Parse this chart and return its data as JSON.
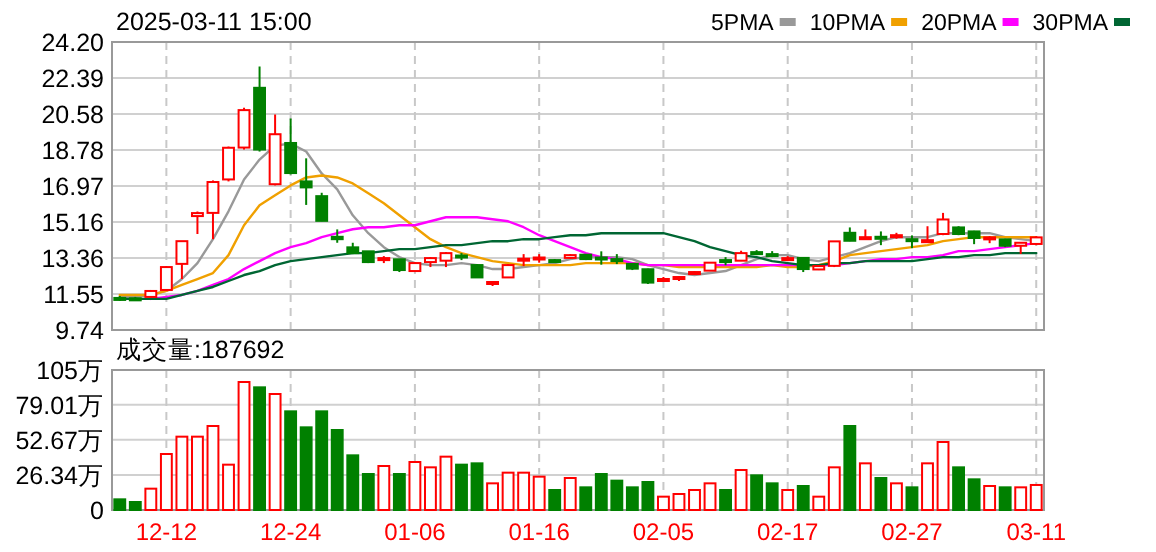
{
  "chart_data": [
    {
      "type": "candlestick",
      "title": "2025-03-11 15:00",
      "legend": "top right",
      "grid": true,
      "tick_labels": "y",
      "categories": [
        null,
        null,
        null,
        null,
        null,
        null,
        null,
        null,
        null,
        null,
        null,
        null,
        null,
        null,
        null,
        null,
        null,
        null,
        null,
        null,
        null,
        null,
        null,
        null,
        null,
        null,
        null,
        null,
        null,
        null,
        null,
        null,
        null,
        null,
        null,
        null,
        null,
        null,
        null,
        null,
        null,
        null,
        null,
        null,
        null,
        null,
        null,
        null,
        null,
        null,
        null,
        null,
        null,
        null,
        null,
        null,
        null,
        null,
        null,
        null
      ],
      "ylim": [
        9.74,
        24.2
      ],
      "yticks": [
        9.74,
        11.55,
        13.36,
        15.16,
        16.97,
        18.78,
        20.58,
        22.39,
        {
          "value": 24.2,
          "label": "24.20"
        }
      ],
      "ohlc": [
        [
          11.35,
          11.45,
          11.2,
          11.3
        ],
        [
          11.33,
          11.4,
          11.22,
          11.28
        ],
        [
          11.4,
          11.75,
          11.38,
          11.7
        ],
        [
          11.75,
          12.95,
          11.72,
          12.9
        ],
        [
          13.06,
          14.2,
          12.3,
          14.2
        ],
        [
          15.46,
          15.69,
          14.56,
          15.61
        ],
        [
          15.62,
          17.25,
          14.3,
          17.17
        ],
        [
          17.3,
          18.95,
          17.2,
          18.89
        ],
        [
          18.9,
          20.9,
          18.8,
          20.78
        ],
        [
          21.9,
          22.97,
          18.7,
          18.8
        ],
        [
          17.06,
          20.56,
          17.0,
          19.57
        ],
        [
          19.13,
          20.36,
          17.55,
          17.62
        ],
        [
          17.2,
          18.36,
          16.02,
          16.9
        ],
        [
          16.46,
          16.63,
          15.2,
          15.22
        ],
        [
          14.42,
          14.79,
          14.12,
          14.3
        ],
        [
          13.89,
          14.12,
          13.55,
          13.6
        ],
        [
          13.69,
          13.7,
          13.1,
          13.15
        ],
        [
          13.25,
          13.45,
          13.1,
          13.35
        ],
        [
          13.29,
          13.3,
          12.65,
          12.75
        ],
        [
          12.7,
          13.15,
          12.65,
          13.1
        ],
        [
          13.15,
          13.4,
          12.9,
          13.35
        ],
        [
          13.22,
          13.65,
          12.9,
          13.6
        ],
        [
          13.48,
          13.6,
          13.25,
          13.42
        ],
        [
          13.0,
          13.05,
          12.35,
          12.38
        ],
        [
          12.05,
          12.2,
          11.95,
          12.15
        ],
        [
          12.38,
          13.05,
          12.35,
          13.0
        ],
        [
          13.27,
          13.55,
          12.95,
          13.32
        ],
        [
          13.33,
          13.55,
          13.12,
          13.38
        ],
        [
          13.25,
          13.3,
          13.15,
          13.2
        ],
        [
          13.36,
          13.55,
          13.33,
          13.5
        ],
        [
          13.52,
          13.55,
          13.25,
          13.3
        ],
        [
          13.38,
          13.69,
          13.02,
          13.34
        ],
        [
          13.3,
          13.55,
          13.05,
          13.25
        ],
        [
          13.06,
          13.1,
          12.75,
          12.82
        ],
        [
          12.79,
          12.82,
          12.05,
          12.12
        ],
        [
          12.25,
          12.4,
          12.15,
          12.3
        ],
        [
          12.3,
          12.45,
          12.2,
          12.4
        ],
        [
          12.55,
          12.7,
          12.5,
          12.65
        ],
        [
          12.72,
          13.15,
          12.7,
          13.12
        ],
        [
          13.25,
          13.4,
          12.99,
          13.2
        ],
        [
          13.22,
          13.72,
          13.2,
          13.6
        ],
        [
          13.65,
          13.75,
          13.5,
          13.6
        ],
        [
          13.55,
          13.7,
          13.4,
          13.5
        ],
        [
          13.3,
          13.45,
          13.2,
          13.35
        ],
        [
          13.36,
          13.4,
          12.65,
          12.8
        ],
        [
          12.78,
          13.0,
          12.75,
          12.95
        ],
        [
          12.96,
          14.19,
          12.9,
          14.19
        ],
        [
          14.62,
          14.89,
          14.2,
          14.22
        ],
        [
          14.38,
          14.79,
          14.35,
          14.4
        ],
        [
          14.42,
          14.69,
          14.0,
          14.38
        ],
        [
          14.46,
          14.62,
          14.32,
          14.5
        ],
        [
          14.3,
          14.49,
          13.85,
          14.28
        ],
        [
          14.2,
          14.95,
          14.2,
          14.25
        ],
        [
          14.56,
          15.62,
          14.5,
          15.29
        ],
        [
          14.89,
          14.95,
          14.5,
          14.56
        ],
        [
          14.69,
          14.72,
          14.05,
          14.36
        ],
        [
          14.33,
          14.45,
          14.1,
          14.39
        ],
        [
          14.29,
          14.32,
          13.9,
          13.97
        ],
        [
          13.97,
          14.15,
          13.56,
          14.12
        ],
        [
          14.06,
          14.45,
          14.0,
          14.39
        ]
      ],
      "colors": [
        "#008000",
        "#008000",
        "#ff0000",
        "#ff0000",
        "#ff0000",
        "#ff0000",
        "#ff0000",
        "#ff0000",
        "#ff0000",
        "#008000",
        "#ff0000",
        "#008000",
        "#008000",
        "#008000",
        "#008000",
        "#008000",
        "#008000",
        "#ff0000",
        "#008000",
        "#ff0000",
        "#ff0000",
        "#ff0000",
        "#008000",
        "#008000",
        "#ff0000",
        "#ff0000",
        "#ff0000",
        "#ff0000",
        "#008000",
        "#ff0000",
        "#008000",
        "#008000",
        "#008000",
        "#008000",
        "#008000",
        "#ff0000",
        "#ff0000",
        "#ff0000",
        "#ff0000",
        "#008000",
        "#ff0000",
        "#008000",
        "#008000",
        "#ff0000",
        "#008000",
        "#ff0000",
        "#ff0000",
        "#008000",
        "#ff0000",
        "#008000",
        "#ff0000",
        "#008000",
        "#ff0000",
        "#ff0000",
        "#008000",
        "#008000",
        "#ff0000",
        "#008000",
        "#ff0000",
        "#ff0000"
      ],
      "series": [
        {
          "name": "5PMA",
          "type": "line",
          "color": "#999999",
          "values": [
            11.4,
            11.4,
            11.5,
            11.7,
            12.3,
            13.1,
            14.3,
            15.7,
            17.3,
            18.3,
            19.0,
            19.1,
            18.7,
            17.6,
            16.8,
            15.5,
            14.6,
            13.9,
            13.4,
            13.1,
            13.0,
            13.0,
            13.1,
            13.0,
            12.8,
            12.8,
            12.9,
            13.0,
            13.1,
            13.3,
            13.4,
            13.4,
            13.4,
            13.3,
            13.0,
            12.8,
            12.6,
            12.5,
            12.6,
            12.7,
            13.0,
            13.3,
            13.5,
            13.5,
            13.3,
            13.2,
            13.4,
            13.6,
            13.9,
            14.2,
            14.4,
            14.4,
            14.4,
            14.6,
            14.6,
            14.6,
            14.6,
            14.4,
            14.3,
            14.2
          ]
        },
        {
          "name": "10PMA",
          "type": "line",
          "color": "#f0a000",
          "values": [
            11.5,
            11.5,
            11.5,
            11.7,
            12.0,
            12.3,
            12.6,
            13.5,
            15.0,
            16.0,
            16.5,
            17.0,
            17.4,
            17.5,
            17.4,
            17.1,
            16.6,
            16.1,
            15.5,
            14.9,
            14.3,
            13.9,
            13.6,
            13.4,
            13.2,
            13.1,
            13.0,
            13.0,
            13.0,
            13.0,
            13.1,
            13.1,
            13.1,
            13.1,
            13.0,
            13.0,
            12.9,
            12.9,
            12.9,
            12.9,
            12.9,
            12.9,
            13.0,
            12.9,
            12.9,
            13.0,
            13.2,
            13.5,
            13.6,
            13.7,
            13.8,
            13.9,
            14.0,
            14.2,
            14.3,
            14.4,
            14.4,
            14.4,
            14.4,
            14.4
          ]
        },
        {
          "name": "20PMA",
          "type": "line",
          "color": "#ff00ff",
          "values": [
            null,
            null,
            11.3,
            11.4,
            11.5,
            11.7,
            12.0,
            12.3,
            12.8,
            13.2,
            13.6,
            13.9,
            14.1,
            14.4,
            14.6,
            14.8,
            14.9,
            14.9,
            15.0,
            15.0,
            15.2,
            15.4,
            15.4,
            15.4,
            15.3,
            15.2,
            14.9,
            14.5,
            14.2,
            13.9,
            13.6,
            13.4,
            13.3,
            13.1,
            13.0,
            13.0,
            13.0,
            13.0,
            13.0,
            13.0,
            13.0,
            13.0,
            13.0,
            13.0,
            13.0,
            13.0,
            13.0,
            13.1,
            13.2,
            13.3,
            13.3,
            13.4,
            13.4,
            13.5,
            13.7,
            13.7,
            13.8,
            13.9,
            14.0,
            14.1
          ]
        },
        {
          "name": "30PMA",
          "type": "line",
          "color": "#006633",
          "values": [
            11.3,
            11.3,
            11.3,
            11.3,
            11.5,
            11.7,
            11.9,
            12.2,
            12.5,
            12.7,
            13.0,
            13.2,
            13.3,
            13.4,
            13.5,
            13.6,
            13.6,
            13.7,
            13.8,
            13.8,
            13.9,
            14.0,
            14.0,
            14.1,
            14.2,
            14.2,
            14.3,
            14.3,
            14.4,
            14.5,
            14.5,
            14.6,
            14.6,
            14.6,
            14.6,
            14.6,
            14.4,
            14.2,
            13.9,
            13.7,
            13.5,
            13.4,
            13.2,
            13.1,
            13.0,
            13.0,
            13.1,
            13.1,
            13.2,
            13.2,
            13.2,
            13.2,
            13.3,
            13.4,
            13.4,
            13.5,
            13.5,
            13.6,
            13.6,
            13.6
          ]
        }
      ]
    },
    {
      "type": "bar",
      "title": "成交量:187692",
      "grid": true,
      "categories": [
        null,
        null,
        null,
        "12-12",
        null,
        null,
        null,
        null,
        null,
        null,
        null,
        "12-24",
        null,
        null,
        null,
        null,
        null,
        null,
        null,
        "01-06",
        null,
        null,
        null,
        null,
        null,
        null,
        null,
        "01-16",
        null,
        null,
        null,
        null,
        null,
        null,
        null,
        "02-05",
        null,
        null,
        null,
        null,
        null,
        null,
        null,
        "02-17",
        null,
        null,
        null,
        null,
        null,
        null,
        null,
        "02-27",
        null,
        null,
        null,
        null,
        null,
        null,
        null,
        "03-11"
      ],
      "ylim": [
        0,
        105
      ],
      "yticks": [
        0,
        {
          "value": 26.34,
          "label": "26.34万"
        },
        {
          "value": 52.67,
          "label": "52.67万"
        },
        {
          "value": 79.01,
          "label": "79.01万"
        },
        {
          "value": 105,
          "label": "105万"
        }
      ],
      "values": [
        8,
        6,
        16,
        42,
        55,
        55,
        63,
        34,
        96,
        92,
        87,
        74,
        62,
        74,
        60,
        41,
        27,
        33,
        27,
        36,
        32,
        40,
        34,
        35,
        20,
        28,
        28,
        25,
        15,
        24,
        17,
        27,
        22,
        17,
        21,
        10,
        12,
        15,
        20,
        15,
        30,
        26,
        20,
        15,
        18,
        10,
        32,
        63,
        35,
        24,
        20,
        17,
        35,
        51,
        32,
        23,
        18,
        17,
        17,
        18.77
      ],
      "colors": [
        "#008000",
        "#008000",
        "#ff0000",
        "#ff0000",
        "#ff0000",
        "#ff0000",
        "#ff0000",
        "#ff0000",
        "#ff0000",
        "#008000",
        "#ff0000",
        "#008000",
        "#008000",
        "#008000",
        "#008000",
        "#008000",
        "#008000",
        "#ff0000",
        "#008000",
        "#ff0000",
        "#ff0000",
        "#ff0000",
        "#008000",
        "#008000",
        "#ff0000",
        "#ff0000",
        "#ff0000",
        "#ff0000",
        "#008000",
        "#ff0000",
        "#008000",
        "#008000",
        "#008000",
        "#008000",
        "#008000",
        "#ff0000",
        "#ff0000",
        "#ff0000",
        "#ff0000",
        "#008000",
        "#ff0000",
        "#008000",
        "#008000",
        "#ff0000",
        "#008000",
        "#ff0000",
        "#ff0000",
        "#008000",
        "#ff0000",
        "#008000",
        "#ff0000",
        "#008000",
        "#ff0000",
        "#ff0000",
        "#008000",
        "#008000",
        "#ff0000",
        "#008000",
        "#ff0000",
        "#ff0000"
      ]
    }
  ]
}
